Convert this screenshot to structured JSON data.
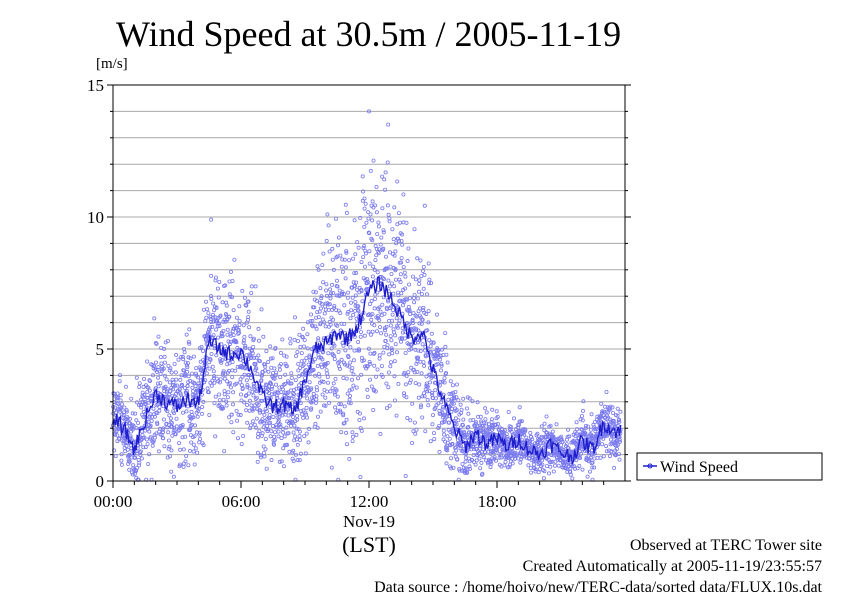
{
  "chart_data": {
    "type": "scatter",
    "title": "Wind Speed at 30.5m / 2005-11-19",
    "ylabel": "[m/s]",
    "xlabel": "(LST)",
    "date_label": "Nov-19",
    "ylim": [
      0,
      15
    ],
    "xlim": [
      "00:00",
      "24:00"
    ],
    "yticks": [
      "0",
      "5",
      "10",
      "15"
    ],
    "xticks": [
      {
        "label": "00:00",
        "hour": 0
      },
      {
        "label": "06:00",
        "hour": 6
      },
      {
        "label": "12:00",
        "hour": 12
      },
      {
        "label": "18:00",
        "hour": 18
      }
    ],
    "grid": "horizontal",
    "legend": {
      "position": "bottom-right-outside",
      "entries": [
        "Wind Speed"
      ]
    },
    "series": [
      {
        "name": "Wind Speed",
        "color": "#1e1ecd",
        "point_color": "#7b7bf0",
        "mean_line": {
          "hour": [
            0.0,
            0.5,
            1.0,
            1.5,
            2.0,
            2.5,
            3.0,
            3.5,
            4.0,
            4.5,
            5.0,
            5.5,
            6.0,
            6.5,
            7.0,
            7.5,
            8.0,
            8.5,
            9.0,
            9.5,
            10.0,
            10.5,
            11.0,
            11.5,
            12.0,
            12.5,
            13.0,
            13.5,
            14.0,
            14.5,
            15.0,
            15.5,
            16.0,
            16.5,
            17.0,
            17.5,
            18.0,
            18.5,
            19.0,
            19.5,
            20.0,
            20.5,
            21.0,
            21.5,
            22.0,
            22.5,
            23.0,
            23.5
          ],
          "speed": [
            2.4,
            2.0,
            1.2,
            2.3,
            3.3,
            3.0,
            2.8,
            3.1,
            2.9,
            5.3,
            5.0,
            4.8,
            4.9,
            4.2,
            3.2,
            2.8,
            2.9,
            2.6,
            3.8,
            5.0,
            5.2,
            5.6,
            5.4,
            5.9,
            7.2,
            7.5,
            7.0,
            6.2,
            5.4,
            5.7,
            4.2,
            3.0,
            2.0,
            1.3,
            1.8,
            1.4,
            1.6,
            1.3,
            1.6,
            1.2,
            1.0,
            1.4,
            1.1,
            0.9,
            1.5,
            1.2,
            2.2,
            1.9
          ]
        },
        "spread": {
          "hour": [
            0.0,
            1.0,
            2.0,
            3.0,
            4.0,
            5.0,
            6.0,
            7.0,
            8.0,
            9.0,
            10.0,
            11.0,
            12.0,
            12.5,
            13.0,
            14.0,
            15.0,
            16.0,
            17.0,
            18.0,
            19.0,
            20.0,
            21.0,
            22.0,
            23.0,
            23.7
          ],
          "sd": [
            0.8,
            0.8,
            1.0,
            1.1,
            1.1,
            1.5,
            1.4,
            1.2,
            1.1,
            1.3,
            1.8,
            2.0,
            2.1,
            2.3,
            2.1,
            1.8,
            1.5,
            0.8,
            0.5,
            0.5,
            0.5,
            0.4,
            0.4,
            0.4,
            0.5,
            0.5
          ]
        },
        "peaks": {
          "hour": [
            4.6,
            12.0,
            12.9
          ],
          "speed": [
            9.9,
            14.0,
            13.5
          ]
        }
      }
    ]
  },
  "footer": {
    "line1": "Observed at TERC Tower site",
    "line2": "Created Automatically at 2005-11-19/23:55:57",
    "line3": "Data source : /home/hoivo/new/TERC-data/sorted  data/FLUX.10s.dat"
  }
}
